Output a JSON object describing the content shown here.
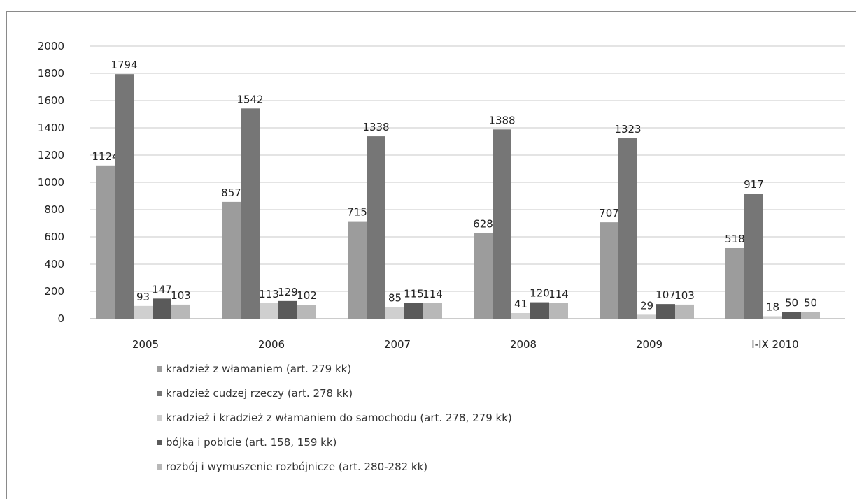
{
  "chart_data": {
    "type": "bar",
    "categories": [
      "2005",
      "2006",
      "2007",
      "2008",
      "2009",
      "I-IX 2010"
    ],
    "ylim": [
      0,
      2000
    ],
    "yticks": [
      0,
      200,
      400,
      600,
      800,
      1000,
      1200,
      1400,
      1600,
      1800,
      2000
    ],
    "grid": true,
    "legend_position": "bottom",
    "series": [
      {
        "name": "kradzież z włamaniem (art. 279 kk)",
        "color": "#9c9c9c",
        "values": [
          1124,
          857,
          715,
          628,
          707,
          518
        ]
      },
      {
        "name": "kradzież cudzej rzeczy (art. 278 kk)",
        "color": "#767676",
        "values": [
          1794,
          1542,
          1338,
          1388,
          1323,
          917
        ]
      },
      {
        "name": "kradzież i kradzież z włamaniem do samochodu (art. 278, 279 kk)",
        "color": "#cfcfcf",
        "values": [
          93,
          113,
          85,
          41,
          29,
          18
        ]
      },
      {
        "name": "bójka i pobicie (art. 158, 159 kk)",
        "color": "#5a5a5a",
        "values": [
          147,
          129,
          115,
          120,
          107,
          50
        ]
      },
      {
        "name": "rozbój i wymuszenie rozbójnicze (art. 280-282 kk)",
        "color": "#b8b8b8",
        "values": [
          103,
          102,
          114,
          114,
          103,
          50
        ]
      }
    ]
  }
}
